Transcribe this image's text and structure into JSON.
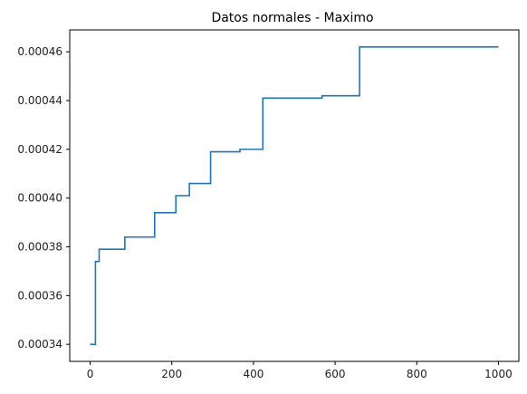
{
  "chart_data": {
    "type": "line",
    "title": "Datos normales - Maximo",
    "xlabel": "",
    "ylabel": "",
    "xlim": [
      -50,
      1050
    ],
    "ylim": [
      0.000333,
      0.000469
    ],
    "x_ticks": [
      0,
      200,
      400,
      600,
      800,
      1000
    ],
    "x_tick_labels": [
      "0",
      "200",
      "400",
      "600",
      "800",
      "1000"
    ],
    "y_ticks": [
      0.00034,
      0.00036,
      0.00038,
      0.0004,
      0.00042,
      0.00044,
      0.00046
    ],
    "y_tick_labels": [
      "0.00034",
      "0.00036",
      "0.00038",
      "0.00040",
      "0.00042",
      "0.00044",
      "0.00046"
    ],
    "grid": false,
    "line_style": "step",
    "series": [
      {
        "color": "#1f77b4",
        "points": [
          [
            0,
            0.00034
          ],
          [
            13,
            0.00034
          ],
          [
            13,
            0.000374
          ],
          [
            22,
            0.000374
          ],
          [
            22,
            0.000379
          ],
          [
            85,
            0.000379
          ],
          [
            85,
            0.000384
          ],
          [
            158,
            0.000384
          ],
          [
            158,
            0.000394
          ],
          [
            210,
            0.000394
          ],
          [
            210,
            0.000401
          ],
          [
            243,
            0.000401
          ],
          [
            243,
            0.000406
          ],
          [
            295,
            0.000406
          ],
          [
            295,
            0.000419
          ],
          [
            367,
            0.000419
          ],
          [
            367,
            0.00042
          ],
          [
            423,
            0.00042
          ],
          [
            423,
            0.000441
          ],
          [
            568,
            0.000441
          ],
          [
            568,
            0.000442
          ],
          [
            660,
            0.000442
          ],
          [
            660,
            0.000462
          ],
          [
            1000,
            0.000462
          ]
        ]
      }
    ]
  }
}
